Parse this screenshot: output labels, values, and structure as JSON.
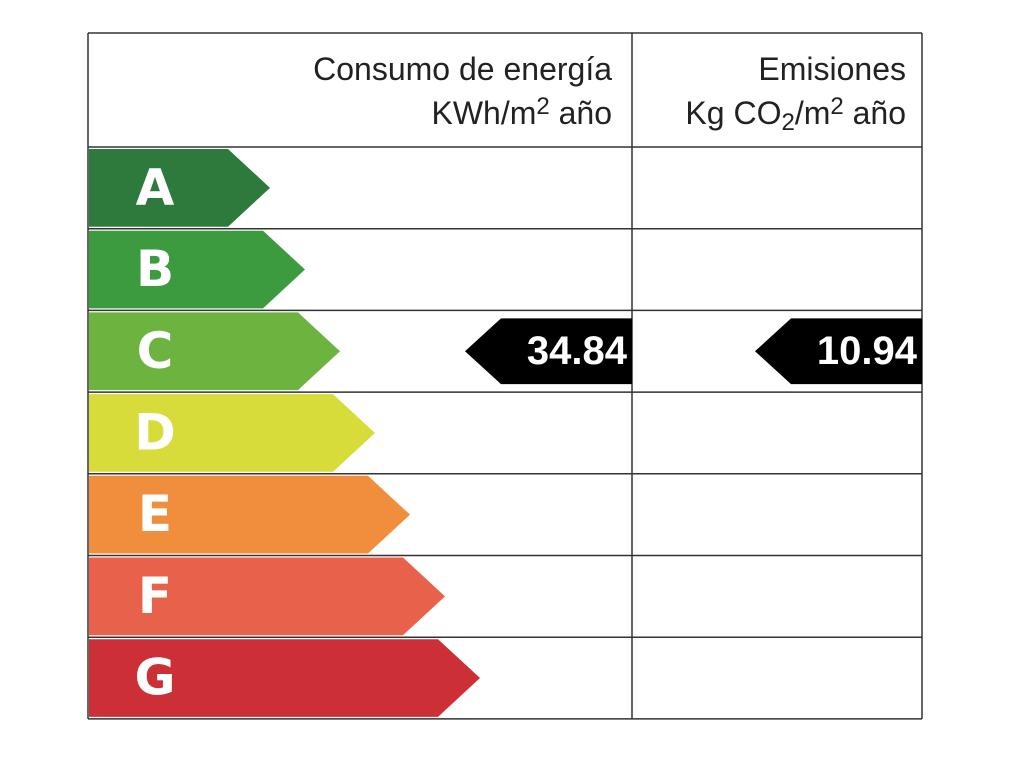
{
  "header": {
    "energy_title": "Consumo de energía",
    "energy_unit": [
      {
        "text": "KWh/m"
      },
      {
        "text": "2",
        "sup": true
      },
      {
        "text": " año"
      }
    ],
    "emissions_title": "Emisiones",
    "emissions_unit": [
      {
        "text": "Kg CO"
      },
      {
        "text": "2",
        "sub": true
      },
      {
        "text": "/m"
      },
      {
        "text": "2",
        "sup": true
      },
      {
        "text": " año"
      }
    ]
  },
  "classes": [
    {
      "letter": "A",
      "color": "#2e7a3c"
    },
    {
      "letter": "B",
      "color": "#3c9a3f"
    },
    {
      "letter": "C",
      "color": "#6db33f"
    },
    {
      "letter": "D",
      "color": "#d8dc3a"
    },
    {
      "letter": "E",
      "color": "#f08e3d"
    },
    {
      "letter": "F",
      "color": "#e8624b"
    },
    {
      "letter": "G",
      "color": "#cc3036"
    }
  ],
  "ratings": {
    "energy": {
      "value": 34.84,
      "class": "C"
    },
    "emissions": {
      "value": 10.94,
      "class": "C"
    }
  }
}
